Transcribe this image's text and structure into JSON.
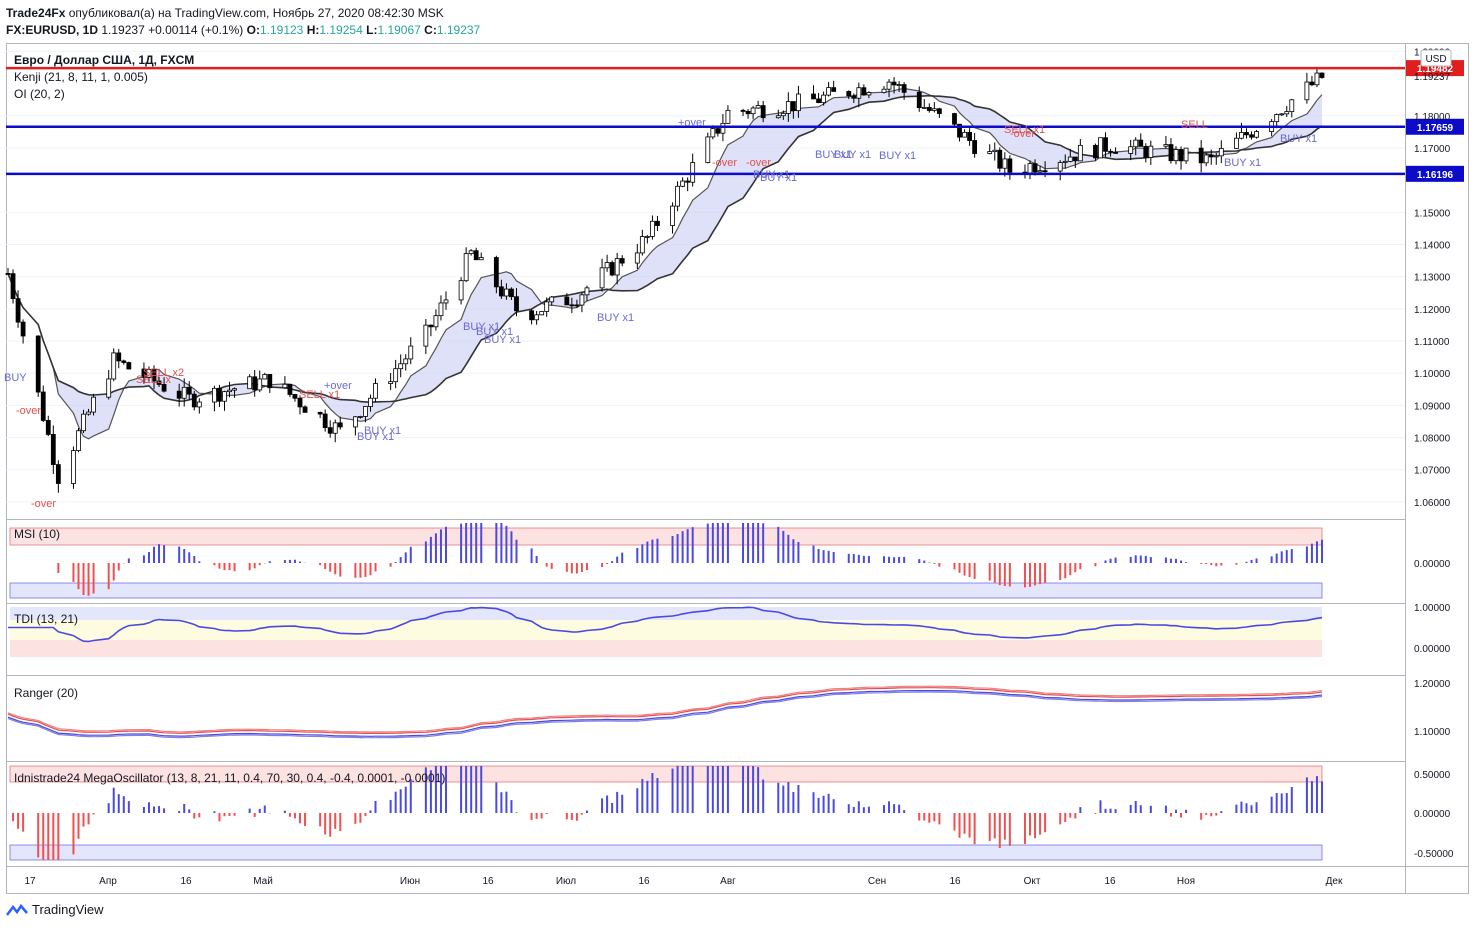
{
  "header": {
    "line1_publisher": "Trade24Fx",
    "line1_rest": "опубликовал(а) на TradingView.com, Ноябрь 27, 2020 08:42:30 MSK",
    "symbol": "FX:EURUSD, 1D",
    "last": "1.19237",
    "change": "+0.00114 (+0.1%)",
    "o_label": "O:",
    "o": "1.19123",
    "h_label": "H:",
    "h": "1.19254",
    "l_label": "L:",
    "l": "1.19067",
    "c_label": "C:",
    "c": "1.19237"
  },
  "main_pane": {
    "title": "Евро / Доллар США, 1Д, FXCM",
    "indicator1": "Kenji (21, 8, 11, 1, 0.005)",
    "indicator2": "OI (20, 2)",
    "currency": "USD",
    "price_ticks": [
      "1.20000",
      "1.19237",
      "1.18000",
      "1.17000",
      "1.15000",
      "1.14000",
      "1.13000",
      "1.12000",
      "1.11000",
      "1.10000",
      "1.09000",
      "1.08000",
      "1.07000",
      "1.06000"
    ],
    "levels": [
      {
        "value": 1.19482,
        "label": "1.19482",
        "color": "#e01e1e"
      },
      {
        "value": 1.17659,
        "label": "1.17659",
        "color": "#0c0cc8"
      },
      {
        "value": 1.16196,
        "label": "1.16196",
        "color": "#0c0cc8"
      }
    ],
    "signals": [
      {
        "text": "BUY",
        "color": "#6a6ad4"
      },
      {
        "text": "-over",
        "color": "#e05050"
      },
      {
        "text": "-over",
        "color": "#e05050"
      },
      {
        "text": "SELL x2",
        "color": "#e05050"
      },
      {
        "text": "SELL x",
        "color": "#e05050"
      },
      {
        "text": "SELL x1",
        "color": "#e05050"
      },
      {
        "text": "+over",
        "color": "#6a6ad4"
      },
      {
        "text": "BUY x1",
        "color": "#6a6ad4"
      },
      {
        "text": "BUY x1",
        "color": "#6a6ad4"
      },
      {
        "text": "BUY x1",
        "color": "#6a6ad4"
      },
      {
        "text": "BUY x1",
        "color": "#6a6ad4"
      },
      {
        "text": "BUY x1",
        "color": "#6a6ad4"
      },
      {
        "text": "BUY x1",
        "color": "#6a6ad4"
      },
      {
        "text": "+over",
        "color": "#6a6ad4"
      },
      {
        "text": "-over",
        "color": "#e05050"
      },
      {
        "text": "-over",
        "color": "#e05050"
      },
      {
        "text": "BUY x1",
        "color": "#6a6ad4"
      },
      {
        "text": "BUY x1",
        "color": "#6a6ad4"
      },
      {
        "text": "BUY x1",
        "color": "#6a6ad4"
      },
      {
        "text": "BUY x1",
        "color": "#6a6ad4"
      },
      {
        "text": "BUY x1",
        "color": "#6a6ad4"
      },
      {
        "text": "SELL x1",
        "color": "#e05050"
      },
      {
        "text": "-over",
        "color": "#e05050"
      },
      {
        "text": "SELL",
        "color": "#e05050"
      },
      {
        "text": "BUY x1",
        "color": "#6a6ad4"
      },
      {
        "text": "BUY x1",
        "color": "#6a6ad4"
      }
    ]
  },
  "panes": [
    {
      "name": "msi",
      "label": "MSI (10)",
      "ticks": [
        "0.00000"
      ]
    },
    {
      "name": "tdi",
      "label": "TDI (13, 21)",
      "ticks": [
        "1.00000",
        "0.00000"
      ]
    },
    {
      "name": "ranger",
      "label": "Ranger (20)",
      "ticks": [
        "1.20000",
        "1.10000"
      ]
    },
    {
      "name": "mega",
      "label": "Idnistrade24 MegaOscillator (13, 8, 21, 11, 0.4, 70, 30, 0.4, -0.4, 0.0001, -0.0001)",
      "ticks": [
        "0.50000",
        "0.00000",
        "-0.50000"
      ]
    }
  ],
  "time_axis": [
    "17",
    "Апр",
    "16",
    "Май",
    "Июн",
    "16",
    "Июл",
    "16",
    "Авг",
    "Сен",
    "16",
    "Окт",
    "16",
    "Ноя",
    "Дек"
  ],
  "footer": {
    "brand": "TradingView"
  },
  "colors": {
    "bull": "#ffffff",
    "bear": "#000000",
    "red_level": "#e01e1e",
    "blue_level": "#0c0cc8",
    "buy": "#6a6ad4",
    "sell": "#e05050",
    "osc_blue": "#4a4ae0",
    "osc_red": "#f05050",
    "osc_green": "#4caf50"
  },
  "chart_data": {
    "type": "candlestick",
    "symbol": "FX:EURUSD",
    "timeframe": "1D",
    "ylim": [
      1.055,
      1.202
    ],
    "approx_close_path": [
      {
        "date": "2020-03-10",
        "close": 1.131
      },
      {
        "date": "2020-03-20",
        "close": 1.068
      },
      {
        "date": "2020-03-31",
        "close": 1.104
      },
      {
        "date": "2020-04-15",
        "close": 1.092
      },
      {
        "date": "2020-05-01",
        "close": 1.098
      },
      {
        "date": "2020-05-15",
        "close": 1.082
      },
      {
        "date": "2020-06-01",
        "close": 1.112
      },
      {
        "date": "2020-06-10",
        "close": 1.137
      },
      {
        "date": "2020-06-20",
        "close": 1.118
      },
      {
        "date": "2020-07-01",
        "close": 1.124
      },
      {
        "date": "2020-07-15",
        "close": 1.142
      },
      {
        "date": "2020-07-31",
        "close": 1.181
      },
      {
        "date": "2020-08-15",
        "close": 1.184
      },
      {
        "date": "2020-09-01",
        "close": 1.191
      },
      {
        "date": "2020-09-25",
        "close": 1.163
      },
      {
        "date": "2020-10-15",
        "close": 1.171
      },
      {
        "date": "2020-11-04",
        "close": 1.166
      },
      {
        "date": "2020-11-26",
        "close": 1.192
      }
    ]
  }
}
